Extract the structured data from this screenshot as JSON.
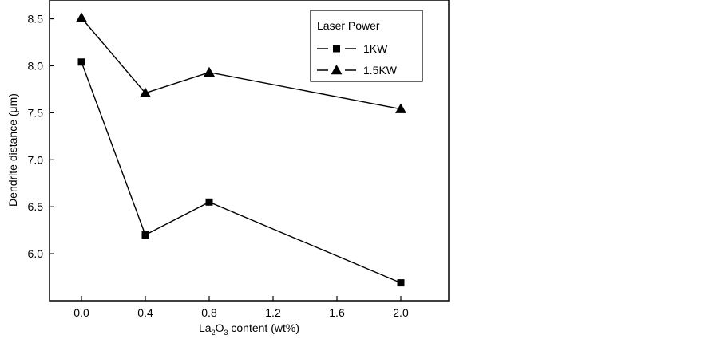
{
  "chart_data": {
    "type": "line",
    "title": "",
    "x": [
      0.0,
      0.4,
      0.8,
      2.0
    ],
    "xlabel": {
      "base": "La",
      "sub1": "2",
      "mid": "O",
      "sub2": "3",
      "rest": " content (wt%)"
    },
    "ylabel": "Dendrite distance (μm)",
    "xlim": [
      -0.2,
      2.3
    ],
    "ylim": [
      5.5,
      8.7
    ],
    "xticks": [
      0.0,
      0.4,
      0.8,
      1.2,
      1.6,
      2.0
    ],
    "xtick_labels": [
      "0.0",
      "0.4",
      "0.8",
      "1.2",
      "1.6",
      "2.0"
    ],
    "yticks": [
      6.0,
      6.5,
      7.0,
      7.5,
      8.0,
      8.5
    ],
    "ytick_labels": [
      "6.0",
      "6.5",
      "7.0",
      "7.5",
      "8.0",
      "8.5"
    ],
    "grid": false,
    "legend": {
      "title": "Laser Power",
      "position": "top-right"
    },
    "series": [
      {
        "name": "1KW",
        "marker": "square",
        "values": [
          8.04,
          6.2,
          6.55,
          5.69
        ]
      },
      {
        "name": "1.5KW",
        "marker": "triangle",
        "values": [
          8.51,
          7.71,
          7.93,
          7.54
        ]
      }
    ]
  }
}
